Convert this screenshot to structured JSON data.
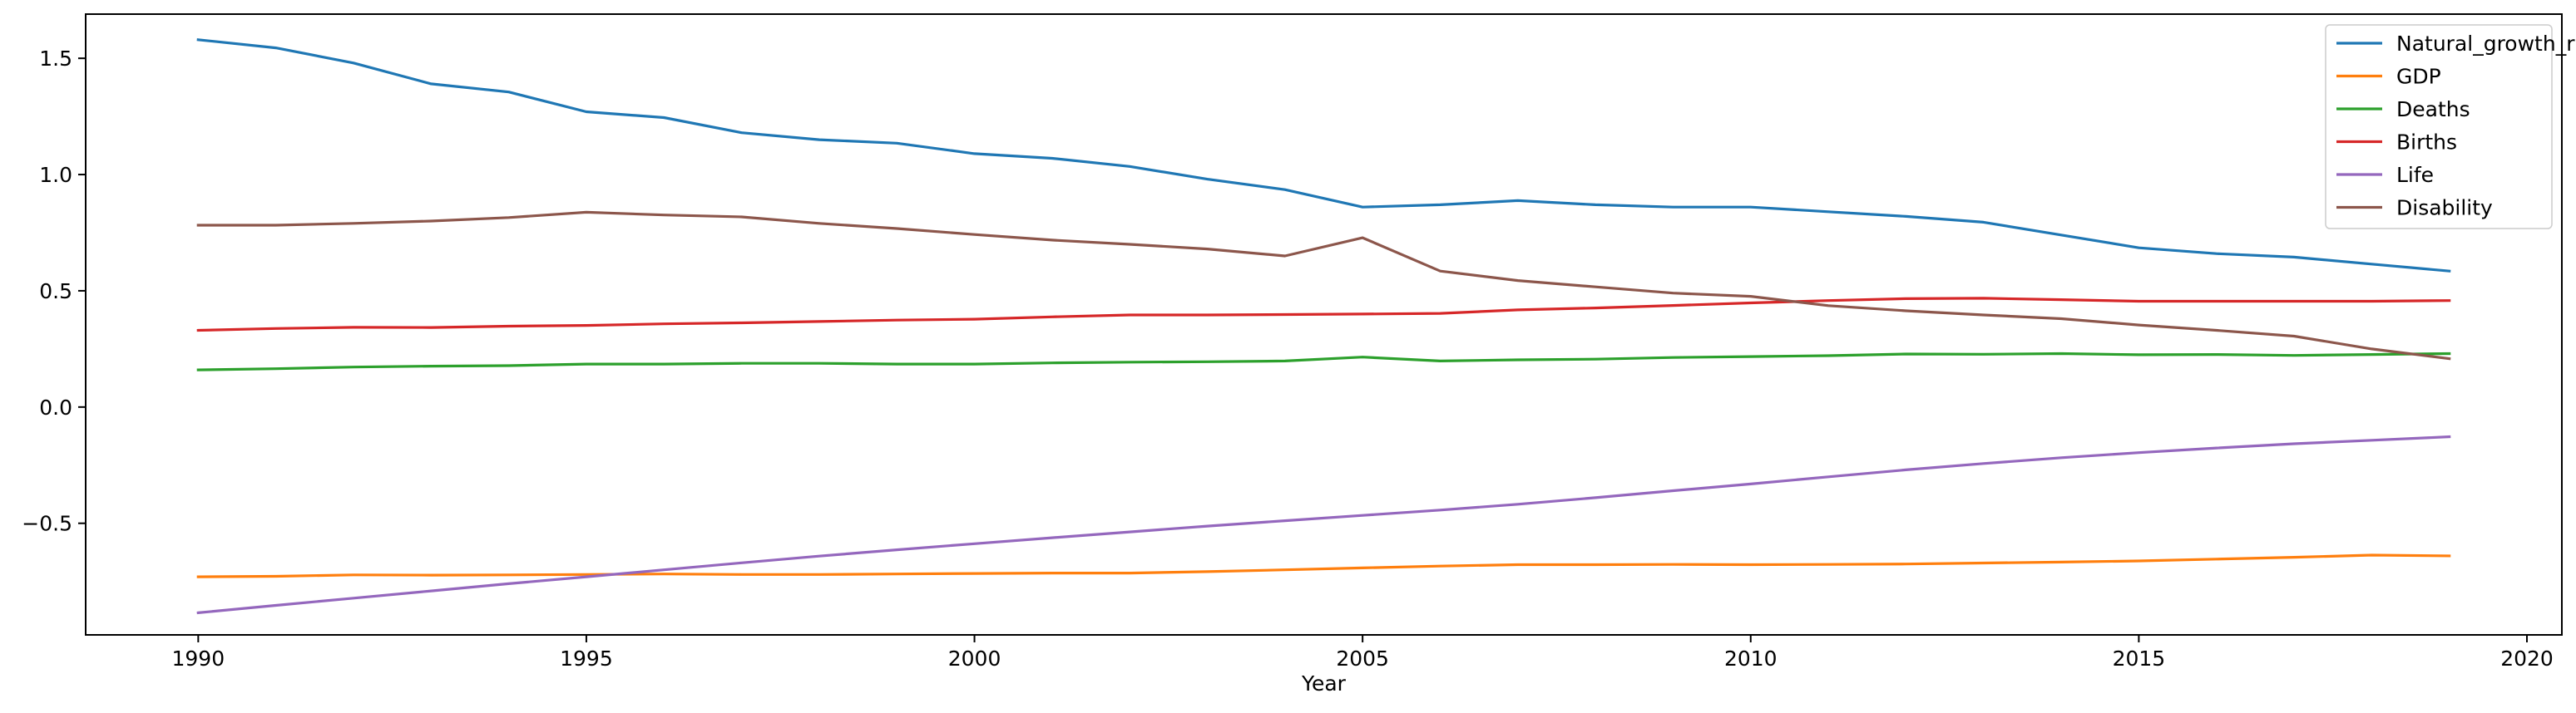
{
  "chart_data": {
    "type": "line",
    "xlabel": "Year",
    "ylabel": "",
    "xlim": [
      1988.55,
      2020.45
    ],
    "ylim": [
      -0.98,
      1.69
    ],
    "xticks": [
      1990,
      1995,
      2000,
      2005,
      2010,
      2015,
      2020
    ],
    "yticks": [
      -0.5,
      0.0,
      0.5,
      1.0,
      1.5
    ],
    "ytick_labels": [
      "−0.5",
      "0.0",
      "0.5",
      "1.0",
      "1.5"
    ],
    "grid": false,
    "legend_position": "top-right",
    "x": [
      1990,
      1991,
      1992,
      1993,
      1994,
      1995,
      1996,
      1997,
      1998,
      1999,
      2000,
      2001,
      2002,
      2003,
      2004,
      2005,
      2006,
      2007,
      2008,
      2009,
      2010,
      2011,
      2012,
      2013,
      2014,
      2015,
      2016,
      2017,
      2018,
      2019
    ],
    "series": [
      {
        "name": "Natural_growth_rate",
        "color": "#1f77b4",
        "values": [
          1.58,
          1.545,
          1.48,
          1.39,
          1.355,
          1.27,
          1.245,
          1.18,
          1.15,
          1.135,
          1.09,
          1.07,
          1.035,
          0.98,
          0.935,
          0.86,
          0.87,
          0.888,
          0.87,
          0.86,
          0.86,
          0.84,
          0.82,
          0.795,
          0.74,
          0.685,
          0.66,
          0.645,
          0.615,
          0.585
        ]
      },
      {
        "name": "GDP",
        "color": "#ff7f0e",
        "values": [
          -0.73,
          -0.728,
          -0.722,
          -0.723,
          -0.722,
          -0.72,
          -0.718,
          -0.72,
          -0.72,
          -0.718,
          -0.716,
          -0.714,
          -0.714,
          -0.708,
          -0.7,
          -0.692,
          -0.684,
          -0.678,
          -0.678,
          -0.677,
          -0.678,
          -0.677,
          -0.675,
          -0.671,
          -0.667,
          -0.662,
          -0.654,
          -0.646,
          -0.637,
          -0.64
        ]
      },
      {
        "name": "Deaths",
        "color": "#2ca02c",
        "values": [
          0.16,
          0.165,
          0.172,
          0.176,
          0.178,
          0.185,
          0.185,
          0.188,
          0.188,
          0.185,
          0.185,
          0.19,
          0.193,
          0.195,
          0.198,
          0.215,
          0.198,
          0.203,
          0.206,
          0.213,
          0.217,
          0.221,
          0.228,
          0.227,
          0.23,
          0.225,
          0.226,
          0.222,
          0.226,
          0.23
        ]
      },
      {
        "name": "Births",
        "color": "#d62728",
        "values": [
          0.33,
          0.338,
          0.343,
          0.342,
          0.348,
          0.351,
          0.358,
          0.362,
          0.368,
          0.374,
          0.378,
          0.388,
          0.396,
          0.396,
          0.398,
          0.4,
          0.403,
          0.418,
          0.426,
          0.437,
          0.448,
          0.458,
          0.466,
          0.468,
          0.462,
          0.455,
          0.455,
          0.455,
          0.455,
          0.458
        ]
      },
      {
        "name": "Life",
        "color": "#9467bd",
        "values": [
          -0.885,
          -0.853,
          -0.822,
          -0.791,
          -0.76,
          -0.73,
          -0.7,
          -0.67,
          -0.641,
          -0.614,
          -0.588,
          -0.562,
          -0.537,
          -0.512,
          -0.489,
          -0.466,
          -0.443,
          -0.418,
          -0.39,
          -0.36,
          -0.331,
          -0.3,
          -0.27,
          -0.243,
          -0.218,
          -0.196,
          -0.176,
          -0.158,
          -0.143,
          -0.128
        ]
      },
      {
        "name": "Disability",
        "color": "#8c564b",
        "values": [
          0.782,
          0.782,
          0.79,
          0.8,
          0.815,
          0.838,
          0.826,
          0.818,
          0.79,
          0.768,
          0.742,
          0.718,
          0.7,
          0.68,
          0.65,
          0.728,
          0.585,
          0.544,
          0.517,
          0.49,
          0.476,
          0.436,
          0.414,
          0.396,
          0.38,
          0.353,
          0.33,
          0.305,
          0.25,
          0.208
        ]
      }
    ]
  }
}
